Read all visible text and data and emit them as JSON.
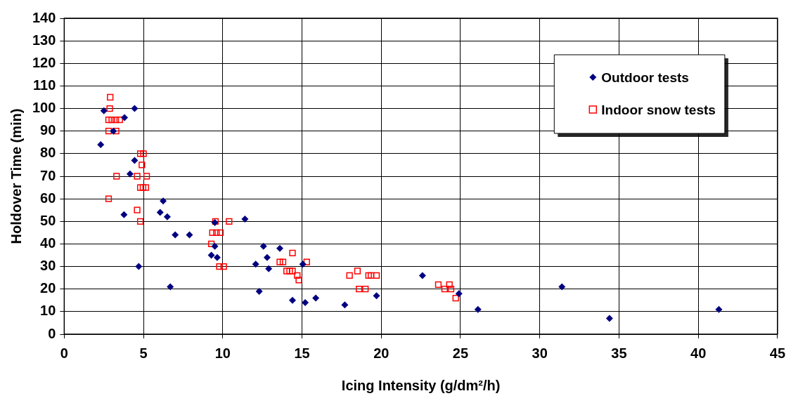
{
  "chart_data": {
    "type": "scatter",
    "xlabel": "Icing Intensity (g/dm²/h)",
    "ylabel": "Holdover Time (min)",
    "xlim": [
      0,
      45
    ],
    "xticks": [
      0,
      5,
      10,
      15,
      20,
      25,
      30,
      35,
      40,
      45
    ],
    "ylim": [
      0,
      140
    ],
    "yticks": [
      0,
      10,
      20,
      30,
      40,
      50,
      60,
      70,
      80,
      90,
      100,
      110,
      120,
      130,
      140
    ],
    "grid": true,
    "legend": "top right",
    "series": [
      {
        "name": "Outdoor tests",
        "color": "#000080",
        "marker": "diamond",
        "x": [
          2.5,
          4.44,
          3.8,
          3.1,
          2.3,
          4.44,
          4.15,
          6.24,
          6.05,
          6.5,
          3.77,
          7.0,
          4.7,
          6.69,
          11.4,
          9.5,
          9.5,
          9.28,
          9.65,
          12.57,
          13.6,
          12.8,
          12.08,
          12.9,
          15.05,
          12.3,
          14.4,
          15.2,
          15.87,
          22.6,
          19.7,
          17.7,
          24.9,
          26.1,
          31.4,
          34.4,
          41.3,
          7.9
        ],
        "values": [
          99,
          100,
          96,
          90,
          84,
          77,
          71,
          59,
          54,
          52,
          53,
          44,
          30,
          21,
          51,
          49.5,
          39,
          35,
          34,
          39,
          38,
          34,
          31,
          29,
          31,
          19,
          15,
          14,
          16,
          26,
          17,
          13,
          18,
          11,
          21,
          7,
          11,
          44
        ]
      },
      {
        "name": "Indoor snow tests",
        "color": "#ff0000",
        "marker": "square",
        "x": [
          2.9,
          2.87,
          2.8,
          3.0,
          3.25,
          3.5,
          2.8,
          3.27,
          4.8,
          5.0,
          4.9,
          3.3,
          4.6,
          5.2,
          4.8,
          4.97,
          5.15,
          2.8,
          4.6,
          4.8,
          9.54,
          10.4,
          9.35,
          9.6,
          9.85,
          9.28,
          14.4,
          15.3,
          13.6,
          13.8,
          9.79,
          10.06,
          14.03,
          14.22,
          14.4,
          14.7,
          14.8,
          18.0,
          18.5,
          19.2,
          19.35,
          19.7,
          18.6,
          19.0,
          23.6,
          24.3,
          24.0,
          24.4,
          24.7
        ],
        "values": [
          105,
          100,
          95,
          95,
          95,
          95,
          90,
          90,
          80,
          80,
          75,
          70,
          70,
          70,
          65,
          65,
          65,
          60,
          55,
          50,
          50,
          50,
          45,
          45,
          45,
          40,
          36,
          32,
          32,
          32,
          30,
          30,
          28,
          28,
          28,
          26,
          24,
          26,
          28,
          26,
          26,
          26,
          20,
          20,
          22,
          22,
          20,
          20,
          16
        ]
      }
    ]
  }
}
